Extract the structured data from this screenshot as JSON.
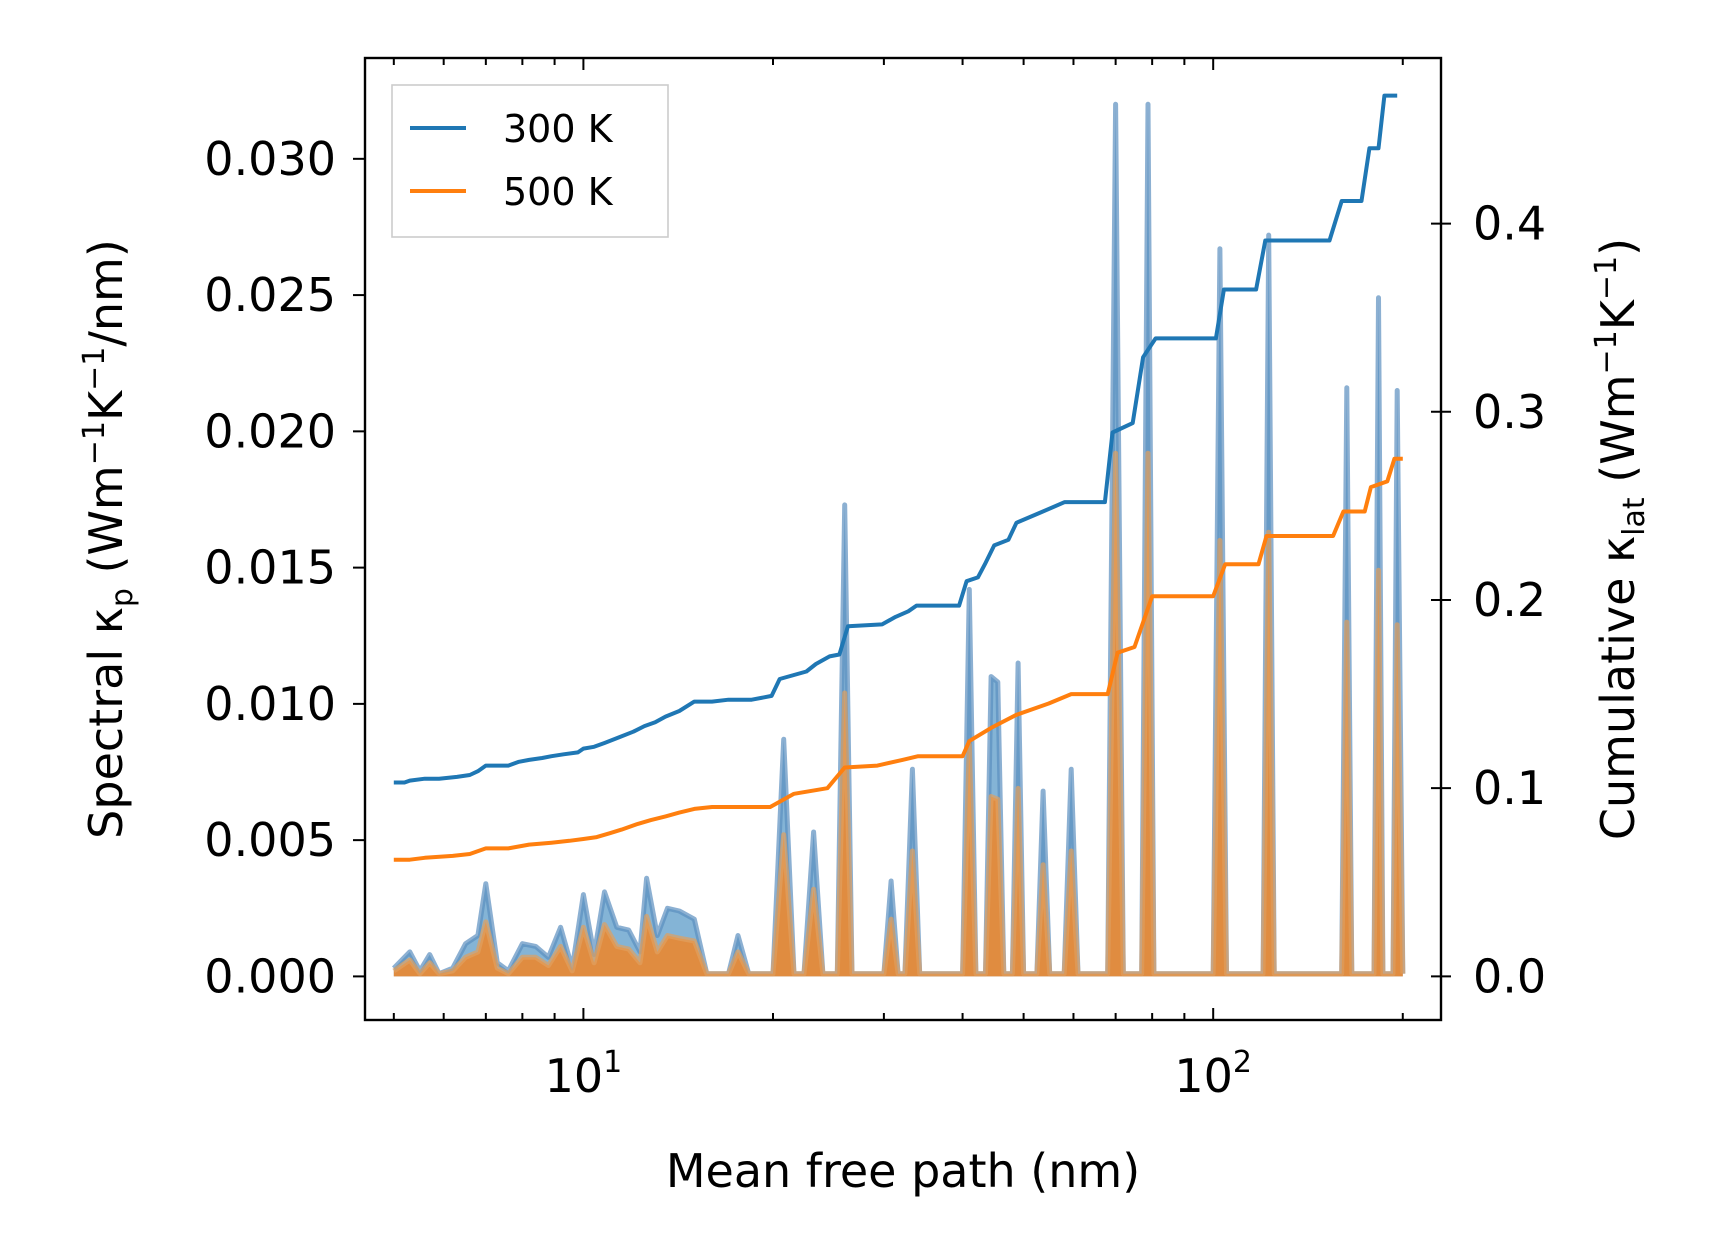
{
  "chart_data": {
    "type": "line",
    "xscale": "log",
    "xlim": [
      4.5,
      230
    ],
    "xlabel": "Mean free path (nm)",
    "x_ticks": [
      {
        "value": 10,
        "base": "10",
        "exp": "1"
      },
      {
        "value": 100,
        "base": "10",
        "exp": "2"
      }
    ],
    "left_axis": {
      "label": "Spectral κₚ (Wm⁻¹K⁻¹/nm)",
      "label_parts": {
        "pre": "Spectral κ",
        "sub": "p",
        "mid": " (Wm",
        "sup1": "−1",
        "mid2": "K",
        "sup2": "−1",
        "post": "/nm)"
      },
      "ylim": [
        -0.0016,
        0.0337
      ],
      "ticks": [
        0.0,
        0.005,
        0.01,
        0.015,
        0.02,
        0.025,
        0.03
      ],
      "tick_labels": [
        "0.000",
        "0.005",
        "0.010",
        "0.015",
        "0.020",
        "0.025",
        "0.030"
      ]
    },
    "right_axis": {
      "label": "Cumulative κ_lat (Wm⁻¹K⁻¹)",
      "label_parts": {
        "pre": "Cumulative κ",
        "sub": "lat",
        "mid": " (Wm",
        "sup1": "−1",
        "mid2": "K",
        "sup2": "−1",
        "post": ")"
      },
      "ylim": [
        -0.0232,
        0.488
      ],
      "ticks": [
        0.0,
        0.1,
        0.2,
        0.3,
        0.4
      ],
      "tick_labels": [
        "0.0",
        "0.1",
        "0.2",
        "0.3",
        "0.4"
      ]
    },
    "legend": {
      "position": "top-left",
      "entries": [
        "300 K",
        "500 K"
      ]
    },
    "series": [
      {
        "name": "300 K",
        "color": "#1f77b4",
        "spectral": [
          [
            5,
            0.0003
          ],
          [
            5.3,
            0.0009
          ],
          [
            5.5,
            0.0002
          ],
          [
            5.7,
            0.0008
          ],
          [
            5.9,
            0.0001
          ],
          [
            6.2,
            0.0003
          ],
          [
            6.5,
            0.0012
          ],
          [
            6.8,
            0.0015
          ],
          [
            7,
            0.0034
          ],
          [
            7.3,
            0.0005
          ],
          [
            7.6,
            0.0002
          ],
          [
            8,
            0.0012
          ],
          [
            8.4,
            0.0011
          ],
          [
            8.8,
            0.0007
          ],
          [
            9.2,
            0.0018
          ],
          [
            9.6,
            0.0003
          ],
          [
            10,
            0.003
          ],
          [
            10.4,
            0.0008
          ],
          [
            10.8,
            0.0031
          ],
          [
            11.3,
            0.0018
          ],
          [
            11.8,
            0.0017
          ],
          [
            12.3,
            0.0009
          ],
          [
            12.6,
            0.0036
          ],
          [
            13.1,
            0.0015
          ],
          [
            13.6,
            0.0025
          ],
          [
            14.2,
            0.0024
          ],
          [
            15,
            0.0021
          ],
          [
            15.7,
            0.0001
          ],
          [
            17,
            0.0001
          ],
          [
            17.6,
            0.0015
          ],
          [
            18.3,
            0.0001
          ],
          [
            20,
            0.0001
          ],
          [
            20.8,
            0.0087
          ],
          [
            21.6,
            0.0001
          ],
          [
            22.4,
            0.0001
          ],
          [
            23.2,
            0.0053
          ],
          [
            24,
            0.0001
          ],
          [
            25.3,
            0.0001
          ],
          [
            26,
            0.0173
          ],
          [
            26.7,
            0.0001
          ],
          [
            30,
            0.0001
          ],
          [
            30.8,
            0.0035
          ],
          [
            31.6,
            0.0001
          ],
          [
            32.4,
            0.0001
          ],
          [
            33.3,
            0.0076
          ],
          [
            34.2,
            0.0001
          ],
          [
            40,
            0.0001
          ],
          [
            41,
            0.0142
          ],
          [
            42,
            0.0001
          ],
          [
            43.5,
            0.0001
          ],
          [
            44.4,
            0.011
          ],
          [
            45.5,
            0.0108
          ],
          [
            46.5,
            0.0001
          ],
          [
            48,
            0.0001
          ],
          [
            49,
            0.0115
          ],
          [
            50,
            0.0001
          ],
          [
            52.5,
            0.0001
          ],
          [
            53.7,
            0.0068
          ],
          [
            55,
            0.0001
          ],
          [
            58,
            0.0001
          ],
          [
            59.5,
            0.0076
          ],
          [
            61,
            0.0001
          ],
          [
            68,
            0.0001
          ],
          [
            70,
            0.032
          ],
          [
            72,
            0.0001
          ],
          [
            77,
            0.0001
          ],
          [
            78.8,
            0.032
          ],
          [
            80.5,
            0.0001
          ],
          [
            100,
            0.0001
          ],
          [
            102.5,
            0.0267
          ],
          [
            105,
            0.0001
          ],
          [
            120,
            0.0001
          ],
          [
            122.5,
            0.0272
          ],
          [
            125,
            0.0001
          ],
          [
            160,
            0.0001
          ],
          [
            163,
            0.0216
          ],
          [
            166,
            0.0001
          ],
          [
            180,
            0.0001
          ],
          [
            183,
            0.0249
          ],
          [
            186,
            0.0001
          ],
          [
            193,
            0.0001
          ],
          [
            196,
            0.0215
          ],
          [
            200,
            0.0001
          ]
        ],
        "cumulative": [
          [
            5,
            0.103
          ],
          [
            5.2,
            0.103
          ],
          [
            5.3,
            0.104
          ],
          [
            5.6,
            0.105
          ],
          [
            5.9,
            0.105
          ],
          [
            6.3,
            0.106
          ],
          [
            6.6,
            0.107
          ],
          [
            6.8,
            0.109
          ],
          [
            7,
            0.112
          ],
          [
            7.6,
            0.112
          ],
          [
            7.9,
            0.114
          ],
          [
            8.2,
            0.115
          ],
          [
            8.6,
            0.116
          ],
          [
            8.9,
            0.117
          ],
          [
            9.3,
            0.118
          ],
          [
            9.8,
            0.119
          ],
          [
            10,
            0.121
          ],
          [
            10.4,
            0.122
          ],
          [
            10.8,
            0.124
          ],
          [
            11.4,
            0.127
          ],
          [
            12,
            0.13
          ],
          [
            12.5,
            0.133
          ],
          [
            13,
            0.135
          ],
          [
            13.5,
            0.138
          ],
          [
            14.2,
            0.141
          ],
          [
            15,
            0.146
          ],
          [
            16,
            0.146
          ],
          [
            17,
            0.147
          ],
          [
            18.5,
            0.147
          ],
          [
            19.9,
            0.149
          ],
          [
            20.5,
            0.158
          ],
          [
            22.6,
            0.162
          ],
          [
            23.4,
            0.166
          ],
          [
            24.6,
            0.17
          ],
          [
            25.5,
            0.171
          ],
          [
            26.3,
            0.186
          ],
          [
            29.8,
            0.187
          ],
          [
            31.3,
            0.191
          ],
          [
            32.8,
            0.194
          ],
          [
            33.8,
            0.197
          ],
          [
            39.5,
            0.197
          ],
          [
            40.6,
            0.21
          ],
          [
            42.3,
            0.212
          ],
          [
            43.4,
            0.219
          ],
          [
            44.9,
            0.229
          ],
          [
            47.3,
            0.232
          ],
          [
            48.7,
            0.241
          ],
          [
            52.8,
            0.246
          ],
          [
            58.1,
            0.252
          ],
          [
            67.3,
            0.252
          ],
          [
            69.2,
            0.289
          ],
          [
            74.5,
            0.294
          ],
          [
            77.4,
            0.329
          ],
          [
            81,
            0.339
          ],
          [
            101,
            0.339
          ],
          [
            104,
            0.365
          ],
          [
            117,
            0.365
          ],
          [
            121,
            0.391
          ],
          [
            153,
            0.391
          ],
          [
            160,
            0.412
          ],
          [
            172,
            0.412
          ],
          [
            177,
            0.44
          ],
          [
            183,
            0.44
          ],
          [
            187,
            0.468
          ],
          [
            196,
            0.468
          ]
        ]
      },
      {
        "name": "500 K",
        "color": "#ff7f0e",
        "spectral": [
          [
            5,
            0.0002
          ],
          [
            5.3,
            0.0006
          ],
          [
            5.5,
            0.0001
          ],
          [
            5.7,
            0.0005
          ],
          [
            5.9,
            0.0001
          ],
          [
            6.2,
            0.0002
          ],
          [
            6.5,
            0.0007
          ],
          [
            6.8,
            0.0009
          ],
          [
            7,
            0.002
          ],
          [
            7.3,
            0.0003
          ],
          [
            7.6,
            0.0001
          ],
          [
            8,
            0.0007
          ],
          [
            8.4,
            0.0007
          ],
          [
            8.8,
            0.0004
          ],
          [
            9.2,
            0.0011
          ],
          [
            9.6,
            0.0002
          ],
          [
            10,
            0.0018
          ],
          [
            10.4,
            0.0005
          ],
          [
            10.8,
            0.0019
          ],
          [
            11.3,
            0.0011
          ],
          [
            11.8,
            0.001
          ],
          [
            12.3,
            0.0005
          ],
          [
            12.6,
            0.0022
          ],
          [
            13.1,
            0.0009
          ],
          [
            13.6,
            0.0015
          ],
          [
            14.2,
            0.0014
          ],
          [
            15,
            0.0013
          ],
          [
            15.7,
            0.0001
          ],
          [
            17,
            0.0001
          ],
          [
            17.6,
            0.0009
          ],
          [
            18.3,
            0.0001
          ],
          [
            20,
            0.0001
          ],
          [
            20.8,
            0.0052
          ],
          [
            21.6,
            0.0001
          ],
          [
            22.4,
            0.0001
          ],
          [
            23.2,
            0.0032
          ],
          [
            24,
            0.0001
          ],
          [
            25.3,
            0.0001
          ],
          [
            26,
            0.0104
          ],
          [
            26.7,
            0.0001
          ],
          [
            30,
            0.0001
          ],
          [
            30.8,
            0.0021
          ],
          [
            31.6,
            0.0001
          ],
          [
            32.4,
            0.0001
          ],
          [
            33.3,
            0.0046
          ],
          [
            34.2,
            0.0001
          ],
          [
            40,
            0.0001
          ],
          [
            41,
            0.0085
          ],
          [
            42,
            0.0001
          ],
          [
            43.5,
            0.0001
          ],
          [
            44.4,
            0.0066
          ],
          [
            45.5,
            0.0065
          ],
          [
            46.5,
            0.0001
          ],
          [
            48,
            0.0001
          ],
          [
            49,
            0.0069
          ],
          [
            50,
            0.0001
          ],
          [
            52.5,
            0.0001
          ],
          [
            53.7,
            0.0041
          ],
          [
            55,
            0.0001
          ],
          [
            58,
            0.0001
          ],
          [
            59.5,
            0.0046
          ],
          [
            61,
            0.0001
          ],
          [
            68,
            0.0001
          ],
          [
            70,
            0.0192
          ],
          [
            72,
            0.0001
          ],
          [
            77,
            0.0001
          ],
          [
            78.8,
            0.0192
          ],
          [
            80.5,
            0.0001
          ],
          [
            100,
            0.0001
          ],
          [
            102.5,
            0.016
          ],
          [
            105,
            0.0001
          ],
          [
            120,
            0.0001
          ],
          [
            122.5,
            0.0163
          ],
          [
            125,
            0.0001
          ],
          [
            160,
            0.0001
          ],
          [
            163,
            0.013
          ],
          [
            166,
            0.0001
          ],
          [
            180,
            0.0001
          ],
          [
            183,
            0.0149
          ],
          [
            186,
            0.0001
          ],
          [
            193,
            0.0001
          ],
          [
            196,
            0.0129
          ],
          [
            200,
            0.0001
          ]
        ],
        "cumulative": [
          [
            5,
            0.062
          ],
          [
            5.3,
            0.062
          ],
          [
            5.6,
            0.063
          ],
          [
            6.2,
            0.064
          ],
          [
            6.6,
            0.065
          ],
          [
            7,
            0.068
          ],
          [
            7.6,
            0.068
          ],
          [
            8.2,
            0.07
          ],
          [
            8.9,
            0.071
          ],
          [
            9.5,
            0.072
          ],
          [
            10,
            0.073
          ],
          [
            10.5,
            0.074
          ],
          [
            11,
            0.076
          ],
          [
            11.5,
            0.078
          ],
          [
            12.2,
            0.081
          ],
          [
            12.8,
            0.083
          ],
          [
            13.5,
            0.085
          ],
          [
            14.2,
            0.087
          ],
          [
            15,
            0.089
          ],
          [
            16,
            0.09
          ],
          [
            17,
            0.09
          ],
          [
            19.8,
            0.09
          ],
          [
            21.6,
            0.097
          ],
          [
            24.4,
            0.1
          ],
          [
            26,
            0.111
          ],
          [
            29.3,
            0.112
          ],
          [
            32.1,
            0.115
          ],
          [
            34,
            0.117
          ],
          [
            40,
            0.117
          ],
          [
            41,
            0.125
          ],
          [
            44.4,
            0.132
          ],
          [
            48.7,
            0.139
          ],
          [
            54.8,
            0.145
          ],
          [
            59.5,
            0.15
          ],
          [
            68,
            0.15
          ],
          [
            70.5,
            0.172
          ],
          [
            75,
            0.175
          ],
          [
            80,
            0.202
          ],
          [
            100,
            0.202
          ],
          [
            104.5,
            0.219
          ],
          [
            118,
            0.219
          ],
          [
            121.5,
            0.234
          ],
          [
            155,
            0.234
          ],
          [
            161,
            0.247
          ],
          [
            174,
            0.247
          ],
          [
            178,
            0.26
          ],
          [
            189,
            0.263
          ],
          [
            194,
            0.275
          ],
          [
            200,
            0.275
          ]
        ]
      }
    ]
  }
}
